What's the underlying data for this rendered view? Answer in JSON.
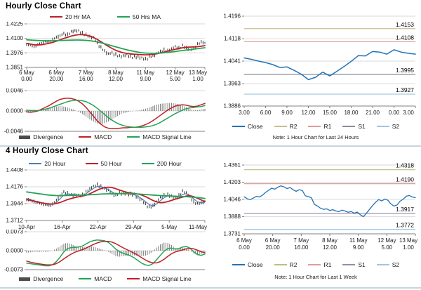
{
  "colors": {
    "red_line": "#bf2026",
    "green_line": "#23a455",
    "blue_ma": "#4d7eb8",
    "close_blue": "#2273b5",
    "candle": "#2e2e2e",
    "divergence_bar": "#6e6e6e",
    "divergence_swatch": "#4d4d4d",
    "gridline": "#d9d9d9",
    "axis": "#808080",
    "divider": "#c6d6de"
  },
  "chart_data": [
    {
      "id": "hourly-price",
      "type": "candlestick",
      "title": "Hourly Close Chart",
      "ylim": [
        1.3851,
        1.4225
      ],
      "yticks": [
        {
          "v": 1.4225,
          "label": "1.4225"
        },
        {
          "v": 1.41,
          "label": "1.4100"
        },
        {
          "v": 1.3976,
          "label": "1.3976"
        },
        {
          "v": 1.3851,
          "label": "1.3851"
        }
      ],
      "x_labels": [
        [
          "6 May",
          "0.00"
        ],
        [
          "6 May",
          "20.00"
        ],
        [
          "7 May",
          "16.00"
        ],
        [
          "8 May",
          "12.00"
        ],
        [
          "11 May",
          "9.00"
        ],
        [
          "12 May",
          "5.00"
        ],
        [
          "13 May",
          "1.00"
        ]
      ],
      "close": [
        1.4052,
        1.404,
        1.4032,
        1.4044,
        1.406,
        1.4075,
        1.4068,
        1.4088,
        1.411,
        1.4125,
        1.414,
        1.4132,
        1.4155,
        1.417,
        1.4162,
        1.4145,
        1.413,
        1.4118,
        1.4105,
        1.406,
        1.402,
        1.399,
        1.3968,
        1.3975,
        1.396,
        1.3945,
        1.3952,
        1.3958,
        1.3945,
        1.3938,
        1.3942,
        1.393,
        1.3922,
        1.3938,
        1.3952,
        1.397,
        1.3985,
        1.4,
        1.3992,
        1.401,
        1.4028,
        1.4015,
        1.4035,
        1.402,
        1.3998,
        1.4015,
        1.4048,
        1.407,
        1.4062
      ],
      "series": [
        {
          "name": "20 Hr MA",
          "color": "#bf2026",
          "width": 1.8,
          "values": [
            1.4058,
            1.4052,
            1.4046,
            1.4044,
            1.4046,
            1.4052,
            1.4058,
            1.4066,
            1.4076,
            1.4088,
            1.41,
            1.411,
            1.412,
            1.4128,
            1.4132,
            1.4132,
            1.4128,
            1.412,
            1.4108,
            1.4092,
            1.4072,
            1.4052,
            1.4032,
            1.4014,
            1.3998,
            1.3986,
            1.3977,
            1.3971,
            1.3967,
            1.3964,
            1.3962,
            1.396,
            1.3959,
            1.396,
            1.3963,
            1.3968,
            1.3975,
            1.3983,
            1.3991,
            1.3999,
            1.4007,
            1.4014,
            1.402,
            1.4024,
            1.4026,
            1.4027,
            1.4029,
            1.4033,
            1.4038
          ]
        },
        {
          "name": "50 Hrs MA",
          "color": "#23a455",
          "width": 1.8,
          "values": [
            1.4088,
            1.4086,
            1.4084,
            1.4082,
            1.4081,
            1.408,
            1.408,
            1.408,
            1.4081,
            1.4082,
            1.4083,
            1.4084,
            1.4085,
            1.4086,
            1.4086,
            1.4085,
            1.4083,
            1.408,
            1.4076,
            1.407,
            1.4063,
            1.4055,
            1.4046,
            1.4037,
            1.4028,
            1.4019,
            1.401,
            1.4002,
            1.3995,
            1.3988,
            1.3982,
            1.3977,
            1.3974,
            1.3972,
            1.3971,
            1.3972,
            1.3974,
            1.3977,
            1.398,
            1.3984,
            1.3988,
            1.3992,
            1.3996,
            1.4,
            1.4004,
            1.4008,
            1.4012,
            1.4016,
            1.402
          ]
        }
      ]
    },
    {
      "id": "hourly-macd",
      "type": "macd",
      "divergence_label": "Divergence",
      "ylim": [
        -0.0046,
        0.0046
      ],
      "yticks": [
        {
          "v": 0.0046,
          "label": "0.0046"
        },
        {
          "v": 0.0,
          "label": "0.0000"
        },
        {
          "v": -0.0046,
          "label": "-0.0046"
        }
      ],
      "series": [
        {
          "name": "MACD",
          "color": "#bf2026",
          "width": 1.5,
          "values": [
            -0.0002,
            -0.0003,
            -0.0002,
            0.0,
            0.0004,
            0.0008,
            0.0012,
            0.0017,
            0.0022,
            0.0026,
            0.0028,
            0.0029,
            0.0028,
            0.0026,
            0.0022,
            0.0016,
            0.0008,
            -0.0002,
            -0.0012,
            -0.0022,
            -0.003,
            -0.0036,
            -0.0039,
            -0.004,
            -0.004,
            -0.0039,
            -0.0038,
            -0.0038,
            -0.0037,
            -0.0037,
            -0.0036,
            -0.0034,
            -0.0031,
            -0.0027,
            -0.0022,
            -0.0016,
            -0.001,
            -0.0004,
            0.0002,
            0.0007,
            0.0011,
            0.0013,
            0.0014,
            0.0013,
            0.0011,
            0.001,
            0.0011,
            0.0014,
            0.0017
          ]
        },
        {
          "name": "MACD Signal Line",
          "color": "#23a455",
          "width": 1.5,
          "values": [
            0.0002,
            0.0001,
            0.0001,
            0.0001,
            0.0002,
            0.0004,
            0.0006,
            0.0009,
            0.0012,
            0.0015,
            0.0018,
            0.0021,
            0.0023,
            0.0024,
            0.0024,
            0.0023,
            0.0021,
            0.0017,
            0.0012,
            0.0006,
            -0.0001,
            -0.0008,
            -0.0015,
            -0.0021,
            -0.0026,
            -0.003,
            -0.0033,
            -0.0035,
            -0.0036,
            -0.0037,
            -0.0037,
            -0.0037,
            -0.0036,
            -0.0035,
            -0.0033,
            -0.003,
            -0.0026,
            -0.0021,
            -0.0016,
            -0.0011,
            -0.0006,
            -0.0002,
            0.0002,
            0.0005,
            0.0007,
            0.0008,
            0.0009,
            0.001,
            0.0012
          ]
        }
      ]
    },
    {
      "id": "pivot-24h",
      "type": "line",
      "note": "Note: 1 Hour Chart for Last 24 Hours",
      "ylim": [
        1.3886,
        1.4196
      ],
      "yticks": [
        {
          "v": 1.4196,
          "label": "1.4196"
        },
        {
          "v": 1.4118,
          "label": "1.4118"
        },
        {
          "v": 1.4041,
          "label": "1.4041"
        },
        {
          "v": 1.3963,
          "label": "1.3963"
        },
        {
          "v": 1.3886,
          "label": "1.3886"
        }
      ],
      "x_labels": [
        "3.00",
        "6.00",
        "9.00",
        "12.00",
        "15.00",
        "18.00",
        "21.00",
        "0.00",
        "3.00"
      ],
      "series": [
        {
          "name": "Close",
          "color": "#2273b5",
          "width": 1.5,
          "values": [
            1.4052,
            1.4047,
            1.4041,
            1.4036,
            1.4029,
            1.4019,
            1.4021,
            1.4009,
            1.3996,
            1.3977,
            1.3985,
            1.4003,
            1.399,
            1.4006,
            1.4022,
            1.404,
            1.406,
            1.4059,
            1.4074,
            1.4072,
            1.4065,
            1.408,
            1.4072,
            1.4068,
            1.4065
          ]
        }
      ],
      "pivots": [
        {
          "name": "R2",
          "value": 1.4153,
          "label": "1.4153",
          "color": "#c9bd8f"
        },
        {
          "name": "R1",
          "value": 1.4108,
          "label": "1.4108",
          "color": "#de9d98"
        },
        {
          "name": "S1",
          "value": 1.3995,
          "label": "1.3995",
          "color": "#8d8d9e"
        },
        {
          "name": "S2",
          "value": 1.3927,
          "label": "1.3927",
          "color": "#9fc6df"
        }
      ]
    },
    {
      "id": "fourhourly-price",
      "type": "candlestick",
      "title": "4 Hourly Close Chart",
      "ylim": [
        1.3712,
        1.4408
      ],
      "yticks": [
        {
          "v": 1.4408,
          "label": "1.4408"
        },
        {
          "v": 1.4176,
          "label": "1.4176"
        },
        {
          "v": 1.3944,
          "label": "1.3944"
        },
        {
          "v": 1.3712,
          "label": "1.3712"
        }
      ],
      "x_labels": [
        "10-Apr",
        "16-Apr",
        "22-Apr",
        "29-Apr",
        "5-May",
        "11-May"
      ],
      "close": [
        1.4005,
        1.3988,
        1.3972,
        1.3958,
        1.3945,
        1.393,
        1.3922,
        1.3935,
        1.399,
        1.4055,
        1.41,
        1.4085,
        1.406,
        1.4068,
        1.4055,
        1.4062,
        1.41,
        1.415,
        1.418,
        1.4205,
        1.4175,
        1.415,
        1.413,
        1.4075,
        1.406,
        1.409,
        1.4085,
        1.408,
        1.4075,
        1.406,
        1.403,
        1.399,
        1.394,
        1.389,
        1.391,
        1.397,
        1.403,
        1.4055,
        1.4065,
        1.405,
        1.401,
        1.4055,
        1.411,
        1.409,
        1.403,
        1.397,
        1.394,
        1.3955,
        1.3975
      ],
      "series": [
        {
          "name": "20 Hour",
          "color": "#4d7eb8",
          "width": 1.2,
          "values": [
            1.4015,
            1.4,
            1.3985,
            1.397,
            1.3955,
            1.3942,
            1.3933,
            1.3932,
            1.396,
            1.401,
            1.406,
            1.408,
            1.407,
            1.4066,
            1.406,
            1.406,
            1.408,
            1.412,
            1.4155,
            1.418,
            1.418,
            1.416,
            1.414,
            1.4105,
            1.4075,
            1.408,
            1.4082,
            1.408,
            1.4075,
            1.4065,
            1.4045,
            1.4012,
            1.3972,
            1.393,
            1.3915,
            1.394,
            1.3985,
            1.4025,
            1.405,
            1.4052,
            1.4035,
            1.404,
            1.407,
            1.4082,
            1.4055,
            1.401,
            1.397,
            1.3955,
            1.3963
          ]
        },
        {
          "name": "50 Hour",
          "color": "#bf2026",
          "width": 1.8,
          "values": [
            1.4,
            1.399,
            1.3978,
            1.3966,
            1.3955,
            1.3946,
            1.394,
            1.3938,
            1.3945,
            1.396,
            1.398,
            1.4,
            1.4015,
            1.4028,
            1.4038,
            1.4048,
            1.406,
            1.408,
            1.4105,
            1.413,
            1.415,
            1.4165,
            1.417,
            1.4165,
            1.415,
            1.4132,
            1.4115,
            1.41,
            1.409,
            1.4082,
            1.4075,
            1.4062,
            1.4042,
            1.4015,
            1.3988,
            1.3968,
            1.3958,
            1.396,
            1.3972,
            1.3988,
            1.4005,
            1.402,
            1.4035,
            1.4048,
            1.4052,
            1.404,
            1.4018,
            1.3995,
            1.3972
          ]
        },
        {
          "name": "200 Hour",
          "color": "#23a455",
          "width": 1.8,
          "values": [
            1.4105,
            1.4098,
            1.409,
            1.4082,
            1.4075,
            1.4068,
            1.4062,
            1.4058,
            1.4055,
            1.4054,
            1.4055,
            1.4056,
            1.4058,
            1.4059,
            1.406,
            1.4062,
            1.4064,
            1.4066,
            1.4069,
            1.4072,
            1.4075,
            1.4077,
            1.4079,
            1.408,
            1.4081,
            1.4082,
            1.4082,
            1.4081,
            1.408,
            1.4078,
            1.4076,
            1.4073,
            1.407,
            1.4066,
            1.4062,
            1.4058,
            1.4055,
            1.4052,
            1.405,
            1.4048,
            1.4046,
            1.4044,
            1.4042,
            1.404,
            1.4037,
            1.4033,
            1.4028,
            1.4022,
            1.4015
          ]
        }
      ]
    },
    {
      "id": "fourhourly-macd",
      "type": "macd",
      "divergence_label": "Divergence",
      "ylim": [
        -0.0073,
        0.0073
      ],
      "yticks": [
        {
          "v": 0.0073,
          "label": "0.0073"
        },
        {
          "v": 0.0,
          "label": "0.0000"
        },
        {
          "v": -0.0073,
          "label": "-0.0073"
        }
      ],
      "series": [
        {
          "name": "MACD",
          "color": "#23a455",
          "width": 1.5,
          "values": [
            -0.0048,
            -0.005,
            -0.0052,
            -0.0054,
            -0.0056,
            -0.0058,
            -0.0058,
            -0.0054,
            -0.0042,
            -0.0025,
            -0.0005,
            0.0008,
            0.0012,
            0.0013,
            0.0014,
            0.0018,
            0.0026,
            0.0034,
            0.0039,
            0.0041,
            0.004,
            0.0038,
            0.0032,
            0.002,
            0.0006,
            -0.0004,
            -0.001,
            -0.0015,
            -0.002,
            -0.0028,
            -0.0038,
            -0.0048,
            -0.0055,
            -0.0057,
            -0.005,
            -0.0035,
            -0.0018,
            -0.0002,
            0.0008,
            0.001,
            0.0006,
            0.0008,
            0.0014,
            0.0016,
            0.001,
            -0.0004,
            -0.0015,
            -0.0018,
            -0.0013
          ]
        },
        {
          "name": "MACD Signal Line",
          "color": "#bf2026",
          "width": 1.5,
          "values": [
            -0.004,
            -0.0044,
            -0.0047,
            -0.005,
            -0.0052,
            -0.0054,
            -0.0055,
            -0.0054,
            -0.005,
            -0.0042,
            -0.0032,
            -0.0022,
            -0.0013,
            -0.0006,
            -0.0001,
            0.0004,
            0.001,
            0.0017,
            0.0024,
            0.003,
            0.0034,
            0.0036,
            0.0036,
            0.0033,
            0.0027,
            0.0019,
            0.0011,
            0.0004,
            -0.0003,
            -0.001,
            -0.0018,
            -0.0027,
            -0.0036,
            -0.0043,
            -0.0047,
            -0.0047,
            -0.0042,
            -0.0033,
            -0.0022,
            -0.0012,
            -0.0005,
            -0.0001,
            0.0003,
            0.0007,
            0.0009,
            0.0007,
            0.0002,
            -0.0004,
            -0.0008
          ]
        }
      ]
    },
    {
      "id": "pivot-1week",
      "type": "line",
      "note": "Note: 1 Hour Chart for Last 1 Week",
      "ylim": [
        1.3731,
        1.4361
      ],
      "yticks": [
        {
          "v": 1.4361,
          "label": "1.4361"
        },
        {
          "v": 1.4203,
          "label": "1.4203"
        },
        {
          "v": 1.4046,
          "label": "1.4046"
        },
        {
          "v": 1.3888,
          "label": "1.3888"
        },
        {
          "v": 1.3731,
          "label": "1.3731"
        }
      ],
      "x_labels": [
        [
          "6 May",
          "0.00"
        ],
        [
          "6 May",
          "20.00"
        ],
        [
          "7 May",
          "16.00"
        ],
        [
          "8 May",
          "12.00"
        ],
        [
          "11 May",
          "9.00"
        ],
        [
          "12 May",
          "5.00"
        ],
        [
          "13 May",
          "1.00"
        ]
      ],
      "series": [
        {
          "name": "Close",
          "color": "#2273b5",
          "width": 1.3,
          "values": [
            1.407,
            1.4052,
            1.4045,
            1.4058,
            1.4075,
            1.4068,
            1.4085,
            1.411,
            1.413,
            1.4148,
            1.414,
            1.4158,
            1.417,
            1.4162,
            1.4145,
            1.4155,
            1.4135,
            1.412,
            1.4135,
            1.4128,
            1.408,
            1.4072,
            1.406,
            1.4,
            1.3985,
            1.3965,
            1.3955,
            1.396,
            1.3945,
            1.3952,
            1.394,
            1.3935,
            1.3948,
            1.394,
            1.3928,
            1.3935,
            1.392,
            1.393,
            1.3905,
            1.3888,
            1.392,
            1.3955,
            1.399,
            1.402,
            1.4045,
            1.4032,
            1.405,
            1.4038,
            1.4005,
            1.3985,
            1.3995,
            1.403,
            1.4048,
            1.4075,
            1.4082,
            1.4068,
            1.4062
          ]
        }
      ],
      "pivots": [
        {
          "name": "R2",
          "value": 1.4318,
          "label": "1.4318",
          "color": "#b2c383"
        },
        {
          "name": "R1",
          "value": 1.419,
          "label": "1.4190",
          "color": "#de9d98"
        },
        {
          "name": "S1",
          "value": 1.3917,
          "label": "1.3917",
          "color": "#9a8bad"
        },
        {
          "name": "S2",
          "value": 1.3772,
          "label": "1.3772",
          "color": "#9fc6df"
        }
      ]
    }
  ]
}
